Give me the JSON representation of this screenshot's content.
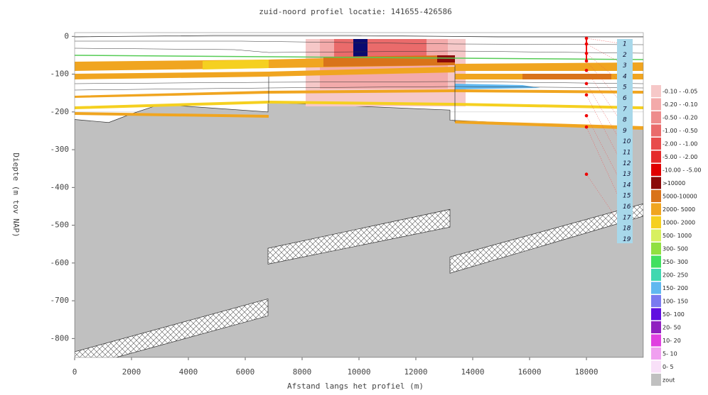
{
  "chart_data": {
    "type": "profile",
    "title": "zuid-noord profiel locatie: 141655-426586",
    "xlabel": "Afstand langs het profiel (m)",
    "ylabel": "Diepte (m tov NAP)",
    "xlim": [
      0,
      20000
    ],
    "ylim": [
      -850,
      10
    ],
    "xticks": [
      0,
      2000,
      4000,
      6000,
      8000,
      10000,
      12000,
      14000,
      16000,
      18000
    ],
    "yticks": [
      0,
      -100,
      -200,
      -300,
      -400,
      -500,
      -600,
      -700,
      -800
    ],
    "grid": true,
    "zout_top": {
      "x": [
        0,
        1200,
        2000,
        3000,
        6800,
        6800,
        13200,
        13200,
        20000
      ],
      "y": [
        -220,
        -228,
        -205,
        -180,
        -200,
        -175,
        -195,
        -222,
        -245
      ]
    },
    "salt_band": [
      {
        "x": [
          0,
          6800
        ],
        "upper": [
          -835,
          -695
        ],
        "lower": [
          -880,
          -740
        ]
      },
      {
        "x": [
          6800,
          13200
        ],
        "upper": [
          -561,
          -458
        ],
        "lower": [
          -603,
          -505
        ]
      },
      {
        "x": [
          13200,
          20000
        ],
        "upper": [
          -584,
          -443
        ],
        "lower": [
          -627,
          -476
        ]
      }
    ],
    "well": {
      "x": 18000,
      "depths": [
        -5,
        -20,
        -45,
        -65,
        -90,
        -125,
        -155,
        -210,
        -240,
        -365
      ]
    },
    "layer_labels": [
      "1",
      "2",
      "3",
      "4",
      "5",
      "6",
      "7",
      "8",
      "9",
      "10",
      "11",
      "12",
      "13",
      "14",
      "15",
      "16",
      "17",
      "18",
      "19"
    ],
    "legend": [
      {
        "label": "-0.10 - -0.05",
        "color": "#f6c8c8"
      },
      {
        "label": "-0.20 - -0.10",
        "color": "#f3aaaa"
      },
      {
        "label": "-0.50 - -0.20",
        "color": "#ee8c8c"
      },
      {
        "label": "-1.00 - -0.50",
        "color": "#ea6b6b"
      },
      {
        "label": "-2.00 - -1.00",
        "color": "#e84c4c"
      },
      {
        "label": "-5.00 - -2.00",
        "color": "#e52a2a"
      },
      {
        "label": "-10.00 - -5.00",
        "color": "#e00000"
      },
      {
        "label": ">10000",
        "color": "#8b0a0a"
      },
      {
        "label": "5000-10000",
        "color": "#d9731a"
      },
      {
        "label": "2000- 5000",
        "color": "#f0a520"
      },
      {
        "label": "1000- 2000",
        "color": "#f5d020"
      },
      {
        "label": "500- 1000",
        "color": "#d8f060"
      },
      {
        "label": "300- 500",
        "color": "#90e040"
      },
      {
        "label": "250- 300",
        "color": "#40e060"
      },
      {
        "label": "200- 250",
        "color": "#40d8b0"
      },
      {
        "label": "150- 200",
        "color": "#60b8f0"
      },
      {
        "label": "100- 150",
        "color": "#7a7af0"
      },
      {
        "label": "50- 100",
        "color": "#6010e0"
      },
      {
        "label": "20- 50",
        "color": "#9020c0"
      },
      {
        "label": "10- 20",
        "color": "#e040e0"
      },
      {
        "label": "5- 10",
        "color": "#f0a0f0"
      },
      {
        "label": "0- 5",
        "color": "#f8e0f8"
      },
      {
        "label": "zout",
        "color": "#c0c0c0"
      }
    ]
  }
}
